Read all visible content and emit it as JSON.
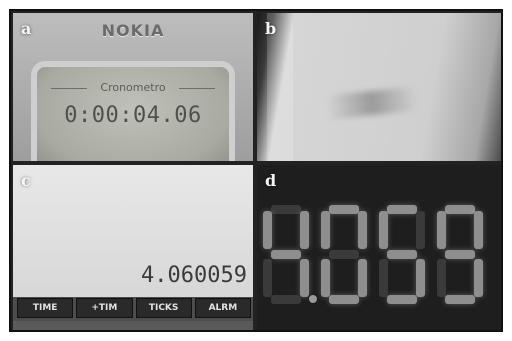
{
  "panels": {
    "a": {
      "label": "a",
      "brand": "NOKIA",
      "screen_title": "Cronometro",
      "time": "0:00:04.06"
    },
    "b": {
      "label": "b"
    },
    "c": {
      "label": "c",
      "value": "4.060059",
      "softkeys": [
        "TIME",
        "+TIM",
        "TICKS",
        "ALRM"
      ]
    },
    "d": {
      "label": "d",
      "digits": [
        "4",
        "0",
        "5",
        "9"
      ],
      "decimal_after_index": 0
    }
  },
  "colors": {
    "frame": "#111111",
    "lcd_text": "#4f514d",
    "led_on": "#8e8e8e"
  }
}
